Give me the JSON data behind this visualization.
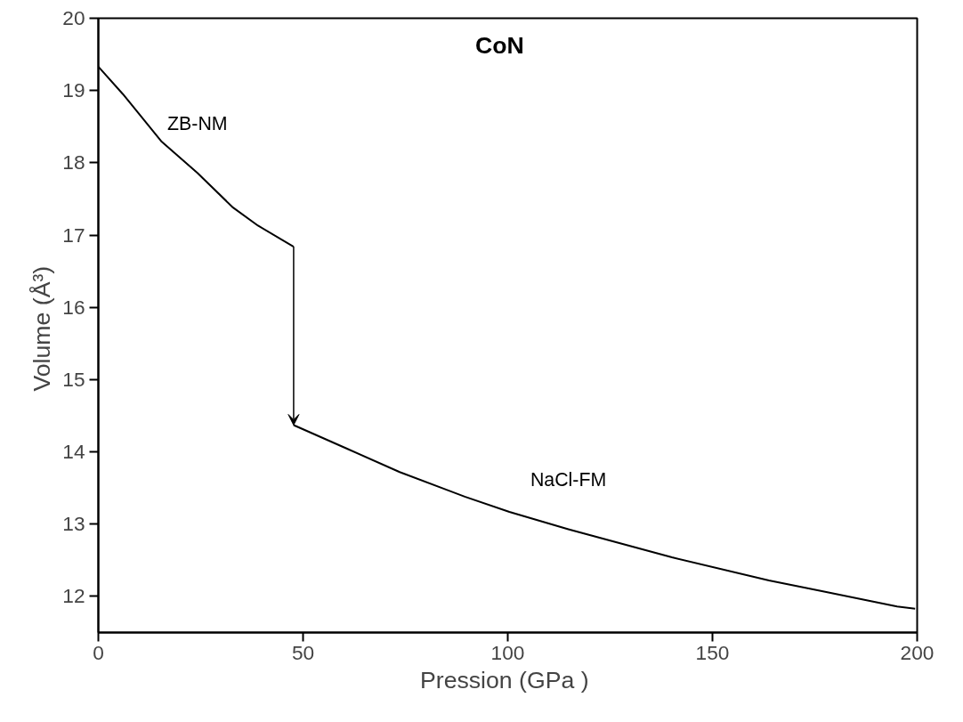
{
  "chart_data": {
    "type": "line",
    "title": "CoN",
    "xlabel": "Pression  (GPa )",
    "ylabel": "Volume  (Å³)",
    "xlim": [
      0,
      200
    ],
    "xticks": [
      0,
      50,
      100,
      150,
      200
    ],
    "ylim": [
      11.5,
      20
    ],
    "yticks": [
      12,
      13,
      14,
      15,
      16,
      17,
      18,
      19,
      20
    ],
    "marker": "none",
    "line_style": "solid",
    "series": [
      {
        "name": "ZB-NM",
        "color": "#000000",
        "x": [
          0,
          6.0,
          15.5,
          24.2,
          32.9,
          39.0,
          47.7
        ],
        "values": [
          19.33,
          18.95,
          18.29,
          17.86,
          17.38,
          17.13,
          16.84
        ]
      },
      {
        "name": "NaCl-FM",
        "color": "#000000",
        "x": [
          47.7,
          60.5,
          73.6,
          89.5,
          100.4,
          114.8,
          140.1,
          163.8,
          176.2,
          195.1,
          199.5
        ],
        "values": [
          14.37,
          14.05,
          13.72,
          13.38,
          13.17,
          12.93,
          12.54,
          12.22,
          12.08,
          11.86,
          11.83
        ]
      }
    ]
  }
}
